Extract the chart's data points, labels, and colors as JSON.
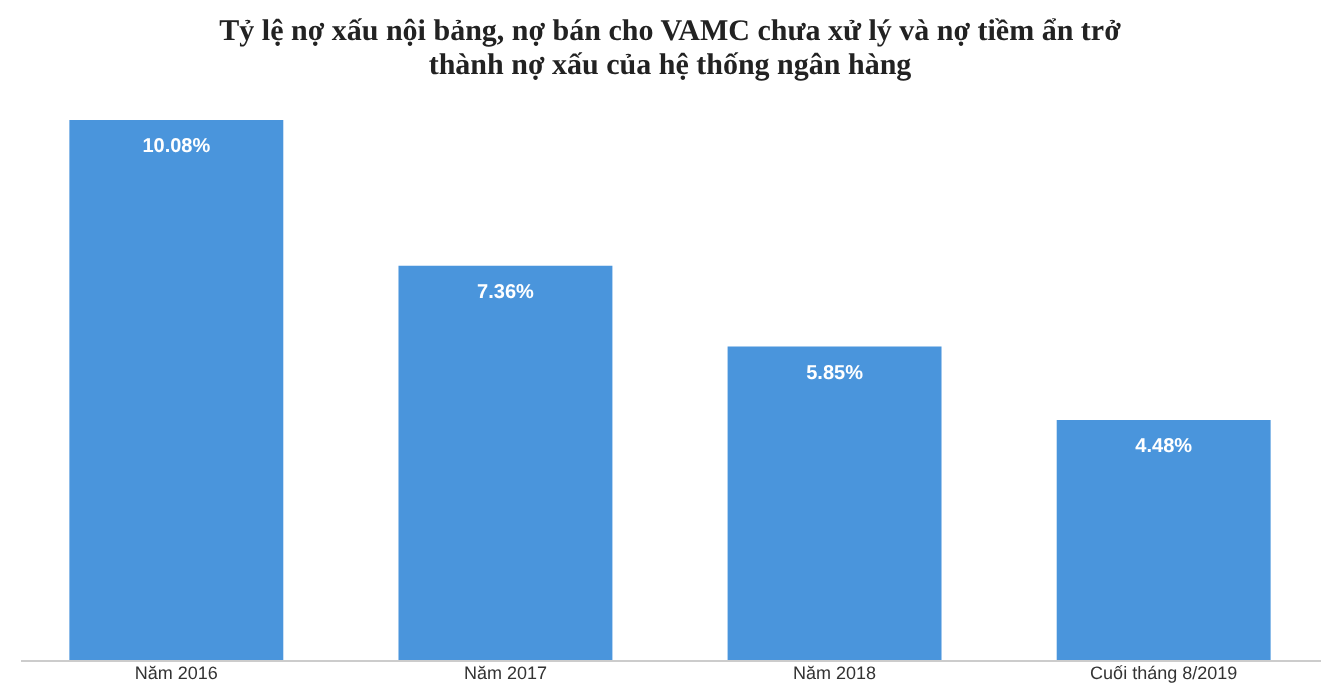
{
  "chart_data": {
    "type": "bar",
    "title": "Tỷ lệ nợ xấu nội bảng, nợ bán cho VAMC chưa xử lý và nợ tiềm ẩn trở thành nợ xấu của hệ thống ngân hàng",
    "categories": [
      "Năm 2016",
      "Năm 2017",
      "Năm 2018",
      "Cuối tháng 8/2019"
    ],
    "values": [
      10.08,
      7.36,
      5.85,
      4.48
    ],
    "value_labels": [
      "10.08%",
      "7.36%",
      "5.85%",
      "4.48%"
    ],
    "color": "#4a95dc"
  }
}
